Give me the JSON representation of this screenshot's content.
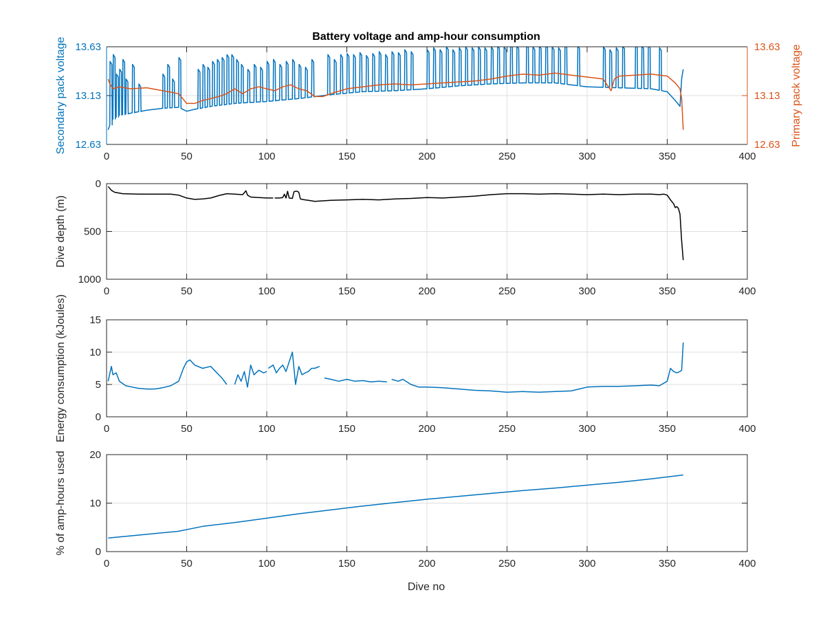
{
  "figure": {
    "title": "Battery voltage and amp-hour consumption",
    "xlabel": "Dive no"
  },
  "chart_data": [
    {
      "id": "voltage",
      "type": "line",
      "title": "Battery voltage and amp-hour consumption",
      "xlim": [
        0,
        400
      ],
      "xticks": [
        "0",
        "50",
        "100",
        "150",
        "200",
        "250",
        "300",
        "350",
        "400"
      ],
      "ylim": [
        12.63,
        13.63
      ],
      "yticks": [
        "12.63",
        "13.13",
        "13.63"
      ],
      "ylabel": "Secondary pack voltage",
      "ylabel_right": "Primary pack voltage",
      "yticks_right": [
        "12.63",
        "13.13",
        "13.63"
      ],
      "grid": true,
      "series": [
        {
          "name": "Secondary pack voltage",
          "color": "#0072bd",
          "axis": "left",
          "baseline": {
            "x": [
              1,
              3,
              8,
              15,
              25,
              35,
              45,
              50,
              55,
              65,
              80,
              100,
              120,
              140,
              160,
              180,
              200,
              220,
              240,
              260,
              280,
              300,
              320,
              340,
              350,
              355,
              358,
              359,
              360
            ],
            "y": [
              12.78,
              12.88,
              12.93,
              12.95,
              12.98,
              13.0,
              13.01,
              12.97,
              12.99,
              13.02,
              13.05,
              13.07,
              13.1,
              13.14,
              13.17,
              13.18,
              13.2,
              13.23,
              13.25,
              13.26,
              13.26,
              13.22,
              13.21,
              13.2,
              13.17,
              13.08,
              13.02,
              13.3,
              13.4
            ]
          },
          "spikes": {
            "x": [
              2,
              4,
              6,
              8,
              10,
              12,
              16,
              20,
              35,
              38,
              41,
              45,
              57,
              60,
              63,
              66,
              69,
              72,
              75,
              78,
              81,
              84,
              88,
              92,
              96,
              100,
              104,
              108,
              112,
              116,
              120,
              124,
              128,
              138,
              142,
              146,
              150,
              154,
              158,
              162,
              166,
              170,
              174,
              178,
              182,
              186,
              190,
              200,
              204,
              208,
              212,
              216,
              220,
              224,
              228,
              232,
              236,
              240,
              244,
              248,
              252,
              256,
              262,
              266,
              270,
              274,
              278,
              282,
              286,
              294,
              310,
              314,
              318,
              322,
              330,
              334,
              338,
              345
            ],
            "y": [
              13.48,
              13.55,
              13.35,
              13.4,
              13.5,
              13.3,
              13.45,
              13.25,
              13.35,
              13.45,
              13.3,
              13.52,
              13.4,
              13.45,
              13.42,
              13.48,
              13.5,
              13.52,
              13.55,
              13.55,
              13.5,
              13.45,
              13.4,
              13.45,
              13.42,
              13.48,
              13.5,
              13.45,
              13.48,
              13.5,
              13.45,
              13.42,
              13.5,
              13.55,
              13.5,
              13.55,
              13.56,
              13.55,
              13.57,
              13.54,
              13.56,
              13.58,
              13.55,
              13.58,
              13.57,
              13.6,
              13.58,
              13.6,
              13.62,
              13.6,
              13.63,
              13.6,
              13.62,
              13.63,
              13.62,
              13.63,
              13.62,
              13.63,
              13.64,
              13.63,
              13.65,
              13.64,
              13.65,
              13.63,
              13.64,
              13.65,
              13.63,
              13.62,
              13.65,
              13.64,
              13.63,
              13.6,
              13.62,
              13.64,
              13.65,
              13.64,
              13.65,
              13.62
            ]
          }
        },
        {
          "name": "Primary pack voltage",
          "color": "#d95319",
          "axis": "right",
          "x": [
            1,
            2,
            4,
            8,
            15,
            25,
            35,
            45,
            50,
            55,
            60,
            65,
            70,
            75,
            80,
            85,
            90,
            95,
            100,
            105,
            110,
            115,
            120,
            125,
            130,
            135,
            140,
            150,
            160,
            170,
            180,
            190,
            200,
            210,
            220,
            230,
            240,
            250,
            260,
            270,
            280,
            290,
            300,
            310,
            315,
            317,
            320,
            330,
            340,
            345,
            350,
            355,
            358,
            359,
            360
          ],
          "y": [
            13.3,
            13.25,
            13.2,
            13.22,
            13.2,
            13.21,
            13.18,
            13.15,
            13.05,
            13.05,
            13.08,
            13.1,
            13.12,
            13.15,
            13.2,
            13.15,
            13.2,
            13.22,
            13.2,
            13.18,
            13.22,
            13.24,
            13.2,
            13.18,
            13.12,
            13.12,
            13.15,
            13.2,
            13.22,
            13.24,
            13.25,
            13.24,
            13.25,
            13.26,
            13.27,
            13.28,
            13.3,
            13.33,
            13.35,
            13.34,
            13.36,
            13.34,
            13.32,
            13.3,
            13.18,
            13.3,
            13.33,
            13.34,
            13.35,
            13.34,
            13.33,
            13.26,
            13.2,
            13.1,
            12.78
          ]
        }
      ]
    },
    {
      "id": "depth",
      "type": "line",
      "xlim": [
        0,
        400
      ],
      "xticks": [
        "0",
        "50",
        "100",
        "150",
        "200",
        "250",
        "300",
        "350",
        "400"
      ],
      "ylim": [
        0,
        1000
      ],
      "y_reversed": true,
      "yticks": [
        "0",
        "500",
        "1000"
      ],
      "ylabel": "Dive depth (m)",
      "grid": true,
      "series": [
        {
          "color": "#000000",
          "x": [
            1,
            3,
            5,
            10,
            20,
            30,
            40,
            45,
            50,
            55,
            60,
            65,
            70,
            75,
            80,
            85,
            87,
            88,
            89,
            90,
            95,
            100,
            104
          ],
          "y": [
            30,
            70,
            90,
            105,
            110,
            110,
            110,
            120,
            150,
            165,
            160,
            150,
            125,
            105,
            110,
            115,
            75,
            120,
            130,
            140,
            145,
            150,
            150
          ]
        },
        {
          "color": "#000000",
          "x": [
            105,
            108,
            110,
            111,
            112,
            113,
            114,
            116,
            117,
            118,
            119,
            120,
            121,
            122,
            124,
            126,
            128,
            130,
            135,
            140,
            150,
            160,
            170,
            180,
            190,
            200,
            210,
            220,
            230,
            240,
            250,
            260,
            270,
            280,
            290,
            300,
            310,
            320,
            330,
            340,
            345,
            348,
            350,
            352,
            354,
            355,
            356,
            357,
            358,
            359,
            360
          ],
          "y": [
            150,
            150,
            145,
            110,
            150,
            80,
            150,
            155,
            85,
            80,
            80,
            90,
            160,
            165,
            170,
            175,
            180,
            185,
            180,
            175,
            170,
            165,
            170,
            160,
            155,
            145,
            150,
            140,
            130,
            115,
            105,
            105,
            110,
            105,
            110,
            115,
            110,
            115,
            110,
            110,
            115,
            110,
            120,
            170,
            210,
            250,
            240,
            260,
            320,
            600,
            800
          ]
        }
      ]
    },
    {
      "id": "energy",
      "type": "line",
      "xlim": [
        0,
        400
      ],
      "xticks": [
        "0",
        "50",
        "100",
        "150",
        "200",
        "250",
        "300",
        "350",
        "400"
      ],
      "ylim": [
        0,
        15
      ],
      "yticks": [
        "0",
        "5",
        "10",
        "15"
      ],
      "ylabel": "Energy consumption (kJoules)",
      "grid": true,
      "series": [
        {
          "color": "#0072bd",
          "x": [
            1,
            3,
            4,
            6,
            8,
            12,
            16,
            20,
            25,
            30,
            35,
            40,
            45,
            48,
            50,
            52,
            55,
            60,
            65,
            70,
            72,
            75
          ],
          "y": [
            5.5,
            7.8,
            6.5,
            6.8,
            5.5,
            4.8,
            4.6,
            4.4,
            4.3,
            4.3,
            4.5,
            4.8,
            5.5,
            7.5,
            8.5,
            8.8,
            8.0,
            7.5,
            7.8,
            6.5,
            6.0,
            5.0
          ]
        },
        {
          "color": "#0072bd",
          "x": [
            80,
            82,
            84,
            86,
            88,
            90,
            92,
            95,
            98,
            100
          ],
          "y": [
            5.0,
            6.5,
            5.5,
            7.0,
            4.6,
            8.0,
            6.5,
            7.2,
            6.8,
            7.0
          ]
        },
        {
          "color": "#0072bd",
          "x": [
            101,
            104,
            106,
            108,
            110,
            112,
            114,
            116,
            118,
            120,
            122,
            124,
            126,
            128,
            130,
            133
          ],
          "y": [
            7.5,
            8.0,
            6.8,
            7.5,
            8.0,
            7.0,
            8.5,
            10.0,
            5.0,
            7.8,
            6.5,
            6.8,
            7.0,
            7.5,
            7.5,
            7.8
          ]
        },
        {
          "color": "#0072bd",
          "x": [
            136,
            140,
            145,
            150,
            155,
            160,
            165,
            170,
            175
          ],
          "y": [
            6.0,
            5.8,
            5.5,
            5.8,
            5.5,
            5.6,
            5.4,
            5.5,
            5.4
          ]
        },
        {
          "color": "#0072bd",
          "x": [
            178,
            182,
            185,
            190,
            195,
            200,
            210,
            220,
            230,
            240,
            250,
            260,
            270,
            280,
            290,
            295,
            300,
            310,
            320,
            330,
            340,
            345,
            350,
            352,
            354,
            356,
            358,
            359,
            360
          ],
          "y": [
            5.8,
            5.5,
            5.8,
            5.0,
            4.6,
            4.6,
            4.5,
            4.3,
            4.1,
            4.0,
            3.8,
            3.9,
            3.8,
            3.9,
            4.0,
            4.3,
            4.6,
            4.7,
            4.7,
            4.8,
            4.9,
            4.8,
            5.5,
            7.5,
            7.0,
            6.8,
            7.0,
            7.2,
            11.5
          ]
        }
      ]
    },
    {
      "id": "amphours",
      "type": "line",
      "xlim": [
        0,
        400
      ],
      "xticks": [
        "0",
        "50",
        "100",
        "150",
        "200",
        "250",
        "300",
        "350",
        "400"
      ],
      "ylim": [
        0,
        20
      ],
      "yticks": [
        "0",
        "10",
        "20"
      ],
      "ylabel": "% of amp-hours used",
      "xlabel": "Dive no",
      "grid": true,
      "series": [
        {
          "color": "#0072bd",
          "x": [
            1,
            20,
            45,
            60,
            80,
            100,
            120,
            140,
            160,
            180,
            200,
            220,
            240,
            260,
            280,
            300,
            320,
            340,
            360
          ],
          "y": [
            2.8,
            3.4,
            4.2,
            5.2,
            6.0,
            6.9,
            7.8,
            8.6,
            9.4,
            10.1,
            10.8,
            11.4,
            12.0,
            12.6,
            13.1,
            13.7,
            14.3,
            15.0,
            15.8
          ]
        }
      ]
    }
  ]
}
